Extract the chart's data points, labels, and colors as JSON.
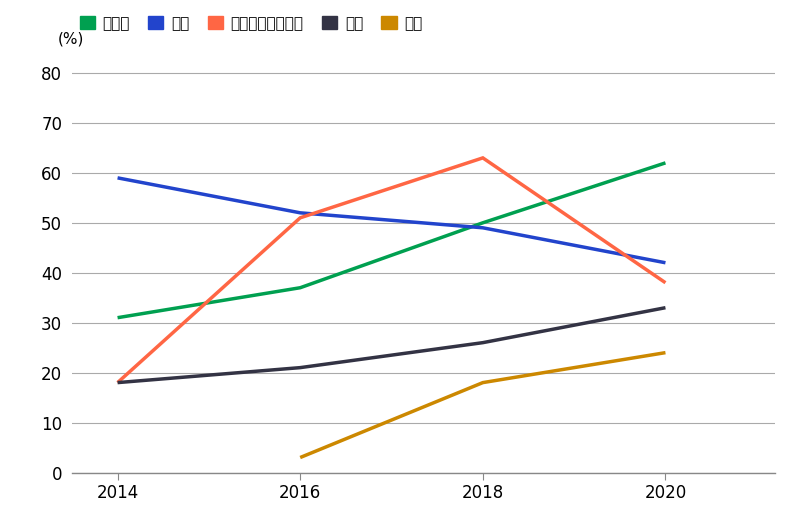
{
  "title": "",
  "ylabel": "(%)",
  "years": [
    2014,
    2016,
    2018,
    2020
  ],
  "series": [
    {
      "label": "カナダ",
      "color": "#00a050",
      "data": [
        31,
        37,
        50,
        62
      ]
    },
    {
      "label": "欧州",
      "color": "#2244cc",
      "data": [
        59,
        52,
        49,
        42
      ]
    },
    {
      "label": "オーストララシア",
      "color": "#ff6644",
      "data": [
        18,
        51,
        63,
        38
      ]
    },
    {
      "label": "米国",
      "color": "#333344",
      "data": [
        18,
        21,
        26,
        33
      ]
    },
    {
      "label": "日本",
      "color": "#cc8800",
      "data": [
        null,
        3,
        18,
        24
      ]
    }
  ],
  "xlim": [
    2013.5,
    2021.2
  ],
  "ylim": [
    0,
    82
  ],
  "yticks": [
    0,
    10,
    20,
    30,
    40,
    50,
    60,
    70,
    80
  ],
  "xticks": [
    2014,
    2016,
    2018,
    2020
  ],
  "background_color": "#ffffff",
  "grid_color": "#aaaaaa",
  "linewidth": 2.5,
  "tick_fontsize": 12,
  "ylabel_fontsize": 11,
  "legend_fontsize": 11
}
